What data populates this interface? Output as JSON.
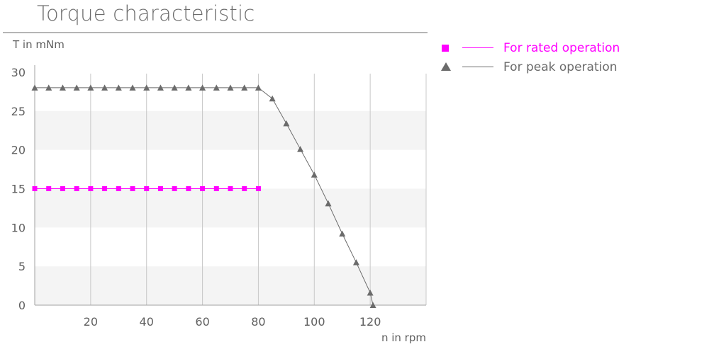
{
  "title": "Torque characteristic",
  "chart_data": {
    "type": "line",
    "title": "Torque characteristic",
    "xlabel": "n in rpm",
    "ylabel": "T in mNm",
    "xlim": [
      0,
      140
    ],
    "ylim": [
      0,
      30
    ],
    "xticks": [
      20,
      40,
      60,
      80,
      100,
      120
    ],
    "yticks": [
      0,
      5,
      10,
      15,
      20,
      25,
      30
    ],
    "grid": "vertical lines, alternating horizontal bands",
    "legend_position": "top-right, outside plot",
    "series": [
      {
        "name": "For rated operation",
        "color": "#ff00ff",
        "marker": "square",
        "x": [
          0,
          5,
          10,
          15,
          20,
          25,
          30,
          35,
          40,
          45,
          50,
          55,
          60,
          65,
          70,
          75,
          80
        ],
        "y": [
          15,
          15,
          15,
          15,
          15,
          15,
          15,
          15,
          15,
          15,
          15,
          15,
          15,
          15,
          15,
          15,
          15
        ]
      },
      {
        "name": "For peak operation",
        "color": "#6b6b6b",
        "marker": "triangle",
        "x": [
          0,
          5,
          10,
          15,
          20,
          25,
          30,
          35,
          40,
          45,
          50,
          55,
          60,
          65,
          70,
          75,
          80,
          85,
          90,
          95,
          100,
          105,
          110,
          115,
          120,
          121
        ],
        "y": [
          28,
          28,
          28,
          28,
          28,
          28,
          28,
          28,
          28,
          28,
          28,
          28,
          28,
          28,
          28,
          28,
          28,
          26.6,
          23.4,
          20.1,
          16.8,
          13.1,
          9.2,
          5.5,
          1.6,
          0
        ]
      }
    ]
  }
}
